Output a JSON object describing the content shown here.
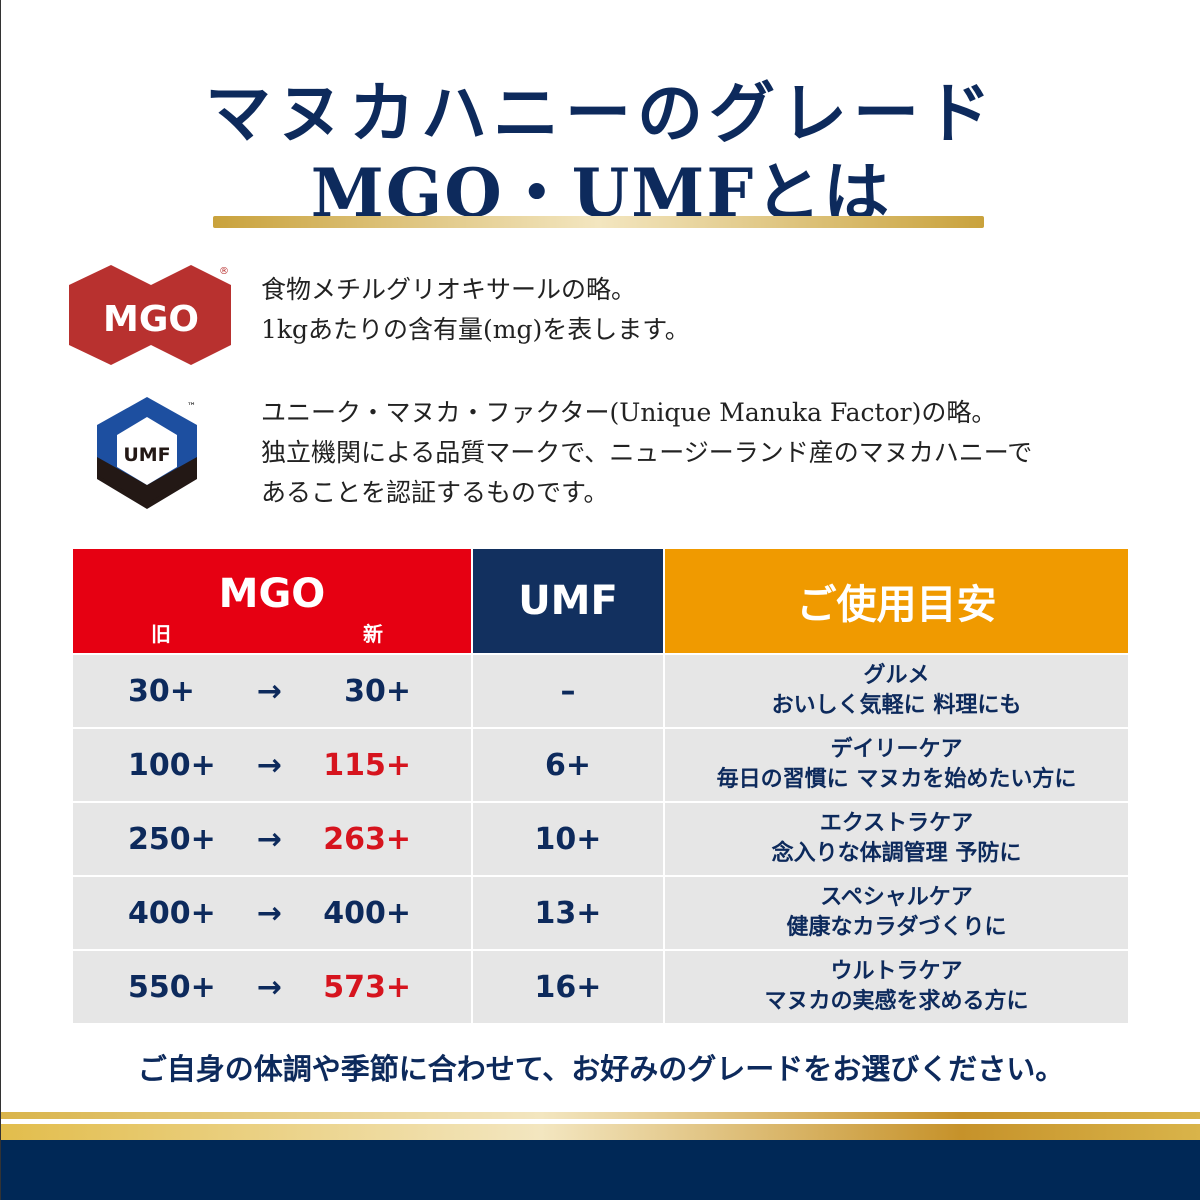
{
  "title": {
    "line1": "マヌカハニーのグレード",
    "line2": "MGO・UMFとは"
  },
  "mgo_logo": {
    "text": "MGO",
    "mark": "®",
    "color": "#b8312f"
  },
  "umf_logo": {
    "text": "UMF",
    "mark": "™"
  },
  "mgo_desc": [
    "食物メチルグリオキサールの略。",
    "1kgあたりの含有量(mg)を表します。"
  ],
  "umf_desc": [
    "ユニーク・マヌカ・ファクター(Unique Manuka Factor)の略。",
    "独立機関による品質マークで、ニュージーランド産のマヌカハニーで",
    "あることを認証するものです。"
  ],
  "table": {
    "headers": {
      "mgo": "MGO",
      "old": "旧",
      "new": "新",
      "umf": "UMF",
      "usage": "ご使用目安"
    },
    "header_colors": {
      "mgo": "#e60012",
      "umf": "#12305f",
      "usage": "#f09a00"
    },
    "arrow": "→",
    "rows": [
      {
        "old": "30+",
        "new": "30+",
        "new_changed": false,
        "umf": "–",
        "usage1": "グルメ",
        "usage2": "おいしく気軽に 料理にも"
      },
      {
        "old": "100+",
        "new": "115+",
        "new_changed": true,
        "umf": "6+",
        "usage1": "デイリーケア",
        "usage2": "毎日の習慣に マヌカを始めたい方に"
      },
      {
        "old": "250+",
        "new": "263+",
        "new_changed": true,
        "umf": "10+",
        "usage1": "エクストラケア",
        "usage2": "念入りな体調管理 予防に"
      },
      {
        "old": "400+",
        "new": "400+",
        "new_changed": false,
        "umf": "13+",
        "usage1": "スペシャルケア",
        "usage2": "健康なカラダづくりに"
      },
      {
        "old": "550+",
        "new": "573+",
        "new_changed": true,
        "umf": "16+",
        "usage1": "ウルトラケア",
        "usage2": "マヌカの実感を求める方に"
      }
    ]
  },
  "note": "ご自身の体調や季節に合わせて、お好みのグレードをお選びください。"
}
